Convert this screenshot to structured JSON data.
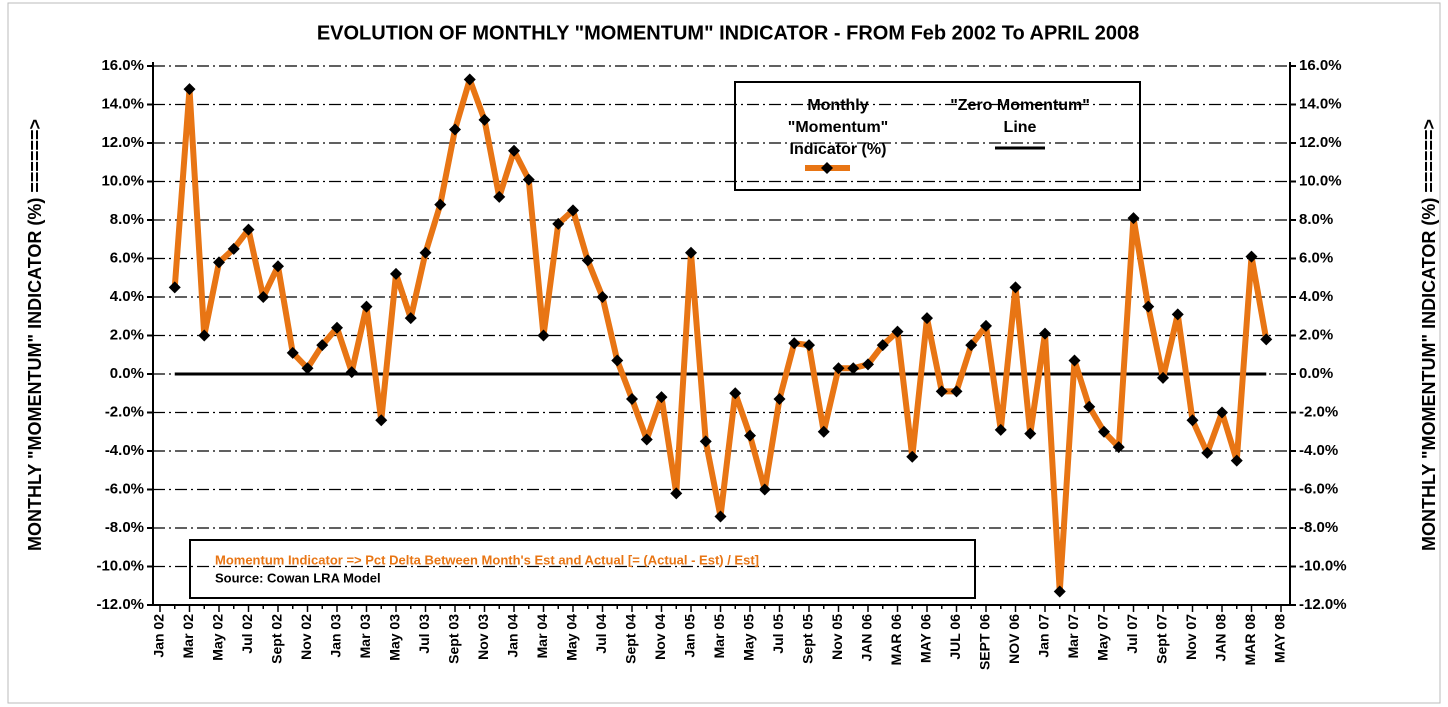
{
  "chart_data": {
    "type": "line",
    "title": "EVOLUTION OF MONTHLY \"MOMENTUM\" INDICATOR - FROM Feb 2002 To APRIL 2008",
    "y_label": "MONTHLY \"MOMENTUM\" INDICATOR (%) ======>",
    "y2_label": "MONTHLY \"MOMENTUM\" INDICATOR (%) ======>",
    "categories": [
      "Jan 02",
      null,
      "Mar 02",
      null,
      "May 02",
      null,
      "Jul 02",
      null,
      "Sept 02",
      null,
      "Nov 02",
      null,
      "Jan 03",
      null,
      "Mar 03",
      null,
      "May 03",
      null,
      "Jul 03",
      null,
      "Sept 03",
      null,
      "Nov 03",
      null,
      "Jan 04",
      null,
      "Mar 04",
      null,
      "May 04",
      null,
      "Jul 04",
      null,
      "Sept 04",
      null,
      "Nov 04",
      null,
      "Jan 05",
      null,
      "Mar 05",
      null,
      "May 05",
      null,
      "Jul 05",
      null,
      "Sept 05",
      null,
      "Nov 05",
      null,
      "JAN 06",
      null,
      "MAR 06",
      null,
      "MAY 06",
      null,
      "JUL 06",
      null,
      "SEPT 06",
      null,
      "NOV 06",
      null,
      "Jan 07",
      null,
      "Mar 07",
      null,
      "May 07",
      null,
      "Jul 07",
      null,
      "Sept 07",
      null,
      "Nov 07",
      null,
      "JAN 08",
      null,
      "MAR 08",
      null,
      "MAY 08"
    ],
    "series": [
      {
        "name": "Monthly \"Momentum\" Indicator (%)",
        "color": "#e87514",
        "marker": "diamond",
        "values": [
          null,
          4.5,
          14.8,
          2.0,
          5.8,
          6.5,
          7.5,
          4.0,
          5.6,
          1.1,
          0.3,
          1.5,
          2.4,
          0.1,
          3.5,
          -2.4,
          5.2,
          2.9,
          6.3,
          8.8,
          12.7,
          15.3,
          13.2,
          9.2,
          11.6,
          10.1,
          2.0,
          7.8,
          8.5,
          5.9,
          4.0,
          0.7,
          -1.3,
          -3.4,
          -1.2,
          -6.2,
          6.3,
          -3.5,
          -7.4,
          -1.0,
          -3.2,
          -6.0,
          -1.3,
          1.6,
          1.5,
          -3.0,
          0.3,
          0.3,
          0.5,
          1.5,
          2.2,
          -4.3,
          2.9,
          -0.9,
          -0.9,
          1.5,
          2.5,
          -2.9,
          4.5,
          -3.1,
          2.1,
          -11.3,
          0.7,
          -1.7,
          -3.0,
          -3.8,
          8.1,
          3.5,
          -0.2,
          3.1,
          -2.4,
          -4.1,
          -2.0,
          -4.5,
          6.1,
          1.8,
          null
        ]
      }
    ],
    "reference_lines": [
      {
        "name": "\"Zero Momentum\" Line",
        "value": 0,
        "color": "#000000"
      }
    ],
    "ylim": [
      -12,
      16
    ],
    "yticks": [
      {
        "value": -12,
        "label": "-12.0%"
      },
      {
        "value": -10,
        "label": "-10.0%"
      },
      {
        "value": -8,
        "label": "-8.0%"
      },
      {
        "value": -6,
        "label": "-6.0%"
      },
      {
        "value": -4,
        "label": "-4.0%"
      },
      {
        "value": -2,
        "label": "-2.0%"
      },
      {
        "value": 0,
        "label": "0.0%"
      },
      {
        "value": 2,
        "label": "2.0%"
      },
      {
        "value": 4,
        "label": "4.0%"
      },
      {
        "value": 6,
        "label": "6.0%"
      },
      {
        "value": 8,
        "label": "8.0%"
      },
      {
        "value": 10,
        "label": "10.0%"
      },
      {
        "value": 12,
        "label": "12.0%"
      },
      {
        "value": 14,
        "label": "14.0%"
      },
      {
        "value": 16,
        "label": "16.0%"
      }
    ],
    "y2lim": [
      -12,
      16
    ],
    "y2ticks": [
      {
        "value": -12,
        "label": "-12.0%"
      },
      {
        "value": -10,
        "label": "-10.0%"
      },
      {
        "value": -8,
        "label": "-8.0%"
      },
      {
        "value": -6,
        "label": "-6.0%"
      },
      {
        "value": -4,
        "label": "-4.0%"
      },
      {
        "value": -2,
        "label": "-2.0%"
      },
      {
        "value": 0,
        "label": "0.0%"
      },
      {
        "value": 2,
        "label": "2.0%"
      },
      {
        "value": 4,
        "label": "4.0%"
      },
      {
        "value": 6,
        "label": "6.0%"
      },
      {
        "value": 8,
        "label": "8.0%"
      },
      {
        "value": 10,
        "label": "10.0%"
      },
      {
        "value": 12,
        "label": "12.0%"
      },
      {
        "value": 14,
        "label": "14.0%"
      },
      {
        "value": 16,
        "label": "16.0%"
      }
    ],
    "grid": true,
    "annotations": [
      {
        "text": "Momentum Indicator => Pct Delta Between Month's Est and Actual [= (Actual - Est) / Est]",
        "color": "#e87514"
      },
      {
        "text": "Source: Cowan LRA Model",
        "color": "#000000"
      }
    ]
  }
}
